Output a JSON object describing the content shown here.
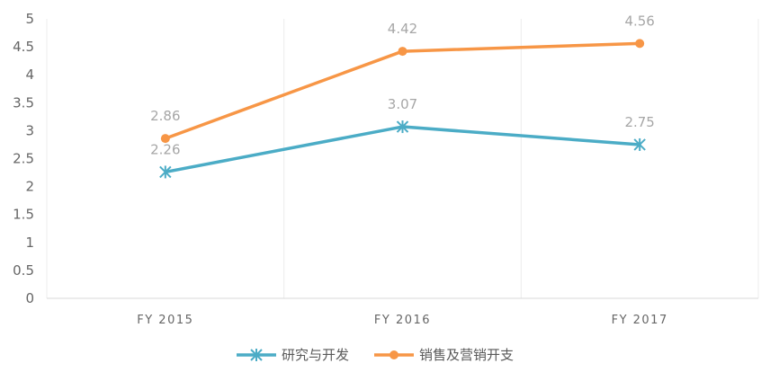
{
  "chart_data": {
    "type": "line",
    "categories": [
      "FY 2015",
      "FY 2016",
      "FY 2017"
    ],
    "series": [
      {
        "name": "研究与开发",
        "values": [
          2.26,
          3.07,
          2.75
        ],
        "color": "#4bacc6",
        "marker": "star"
      },
      {
        "name": "销售及营销开支",
        "values": [
          2.86,
          4.42,
          4.56
        ],
        "color": "#f79646",
        "marker": "circle"
      }
    ],
    "ylim": [
      0,
      5
    ],
    "yticks": [
      "0",
      "0.5",
      "1",
      "1.5",
      "2",
      "2.5",
      "3",
      "3.5",
      "4",
      "4.5",
      "5"
    ],
    "grid": "vertical",
    "legend": "bottom"
  }
}
